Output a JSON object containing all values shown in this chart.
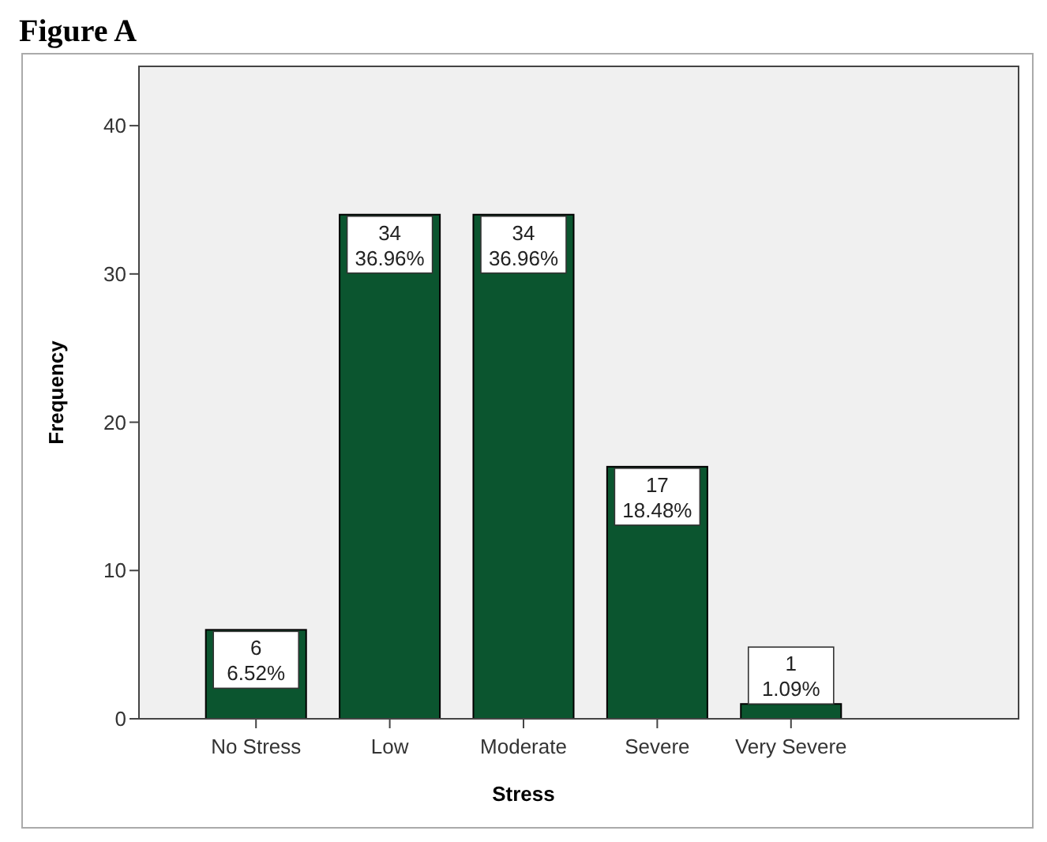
{
  "chart_data": {
    "type": "bar",
    "title": "Figure A",
    "xlabel": "Stress",
    "ylabel": "Frequency",
    "categories": [
      "No Stress",
      "Low",
      "Moderate",
      "Severe",
      "Very Severe"
    ],
    "values": [
      6,
      34,
      34,
      17,
      1
    ],
    "color": "#0b552f",
    "value_labels": [
      "6\n6.52%",
      "34\n36.96%",
      "34\n36.96%",
      "17\n18.48%",
      "1\n1.09%"
    ],
    "ylim": [
      0,
      44
    ],
    "yticks": [
      0,
      10,
      20,
      30,
      40
    ],
    "grid": false
  }
}
